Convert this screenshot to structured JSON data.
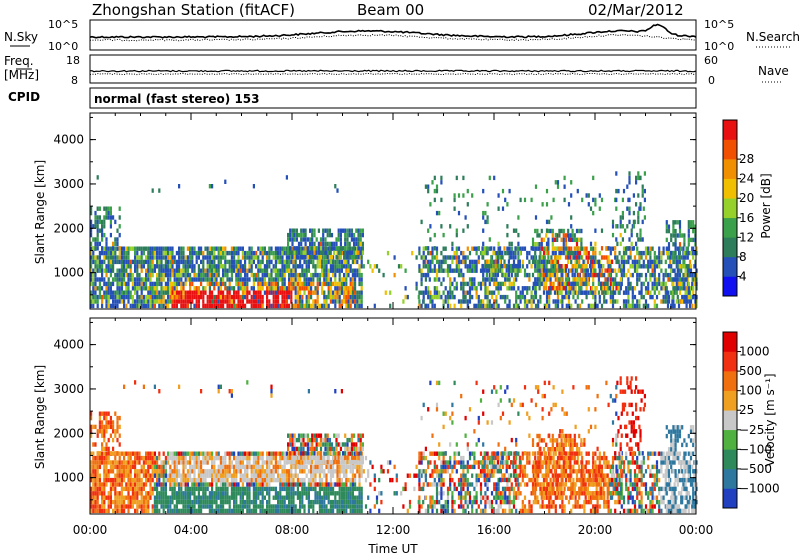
{
  "header": {
    "title": "Zhongshan Station (fitACF)",
    "beam": "Beam 00",
    "date": "02/Mar/2012"
  },
  "top_panels": {
    "nsky_label": "N.Sky",
    "nsearch_label": "N.Search",
    "freq_label": "Freq.",
    "freq_unit": "[MHz]",
    "nave_label": "Nave",
    "cpid_label": "CPID",
    "cpid_text": "normal (fast stereo) 153",
    "noise_ticks_left": [
      "10^5",
      "10^0"
    ],
    "noise_ticks_right": [
      "10^5",
      "10^0"
    ],
    "freq_ticks": [
      "18",
      "8"
    ],
    "nave_ticks": [
      "60",
      "0"
    ]
  },
  "chart_data": [
    {
      "type": "heatmap",
      "panel": "power",
      "ylabel": "Slant Range [km]",
      "ylim": [
        180,
        4600
      ],
      "yticks": [
        "1000",
        "2000",
        "3000",
        "4000"
      ],
      "xlim": [
        0,
        24
      ],
      "xticks": [
        "00:00",
        "04:00",
        "08:00",
        "12:00",
        "16:00",
        "20:00",
        "00:00"
      ],
      "colorbar_label": "Power [dB]",
      "colorbar_ticks": [
        "4",
        "8",
        "12",
        "16",
        "20",
        "24",
        "28"
      ],
      "colorbar_colors": [
        "#1010f0",
        "#2450b8",
        "#2e7d5a",
        "#3aa04a",
        "#96d02a",
        "#f0c000",
        "#f09000",
        "#f05000",
        "#e81010"
      ]
    },
    {
      "type": "heatmap",
      "panel": "velocity",
      "ylabel": "Slant Range [km]",
      "ylim": [
        180,
        4600
      ],
      "yticks": [
        "1000",
        "2000",
        "3000",
        "4000"
      ],
      "xlim": [
        0,
        24
      ],
      "xticks": [
        "00:00",
        "04:00",
        "08:00",
        "12:00",
        "16:00",
        "20:00",
        "00:00"
      ],
      "xlabel": "Time UT",
      "colorbar_label": "Velocity [m s⁻¹]",
      "colorbar_ticks": [
        "1000",
        "500",
        "100",
        "25",
        "−25",
        "−100",
        "−500",
        "−1000"
      ],
      "colorbar_colors": [
        "#2040c0",
        "#2e78a0",
        "#2e8a5a",
        "#50b040",
        "#c8c8c8",
        "#f0a020",
        "#f07010",
        "#f03010",
        "#e00000"
      ]
    }
  ]
}
